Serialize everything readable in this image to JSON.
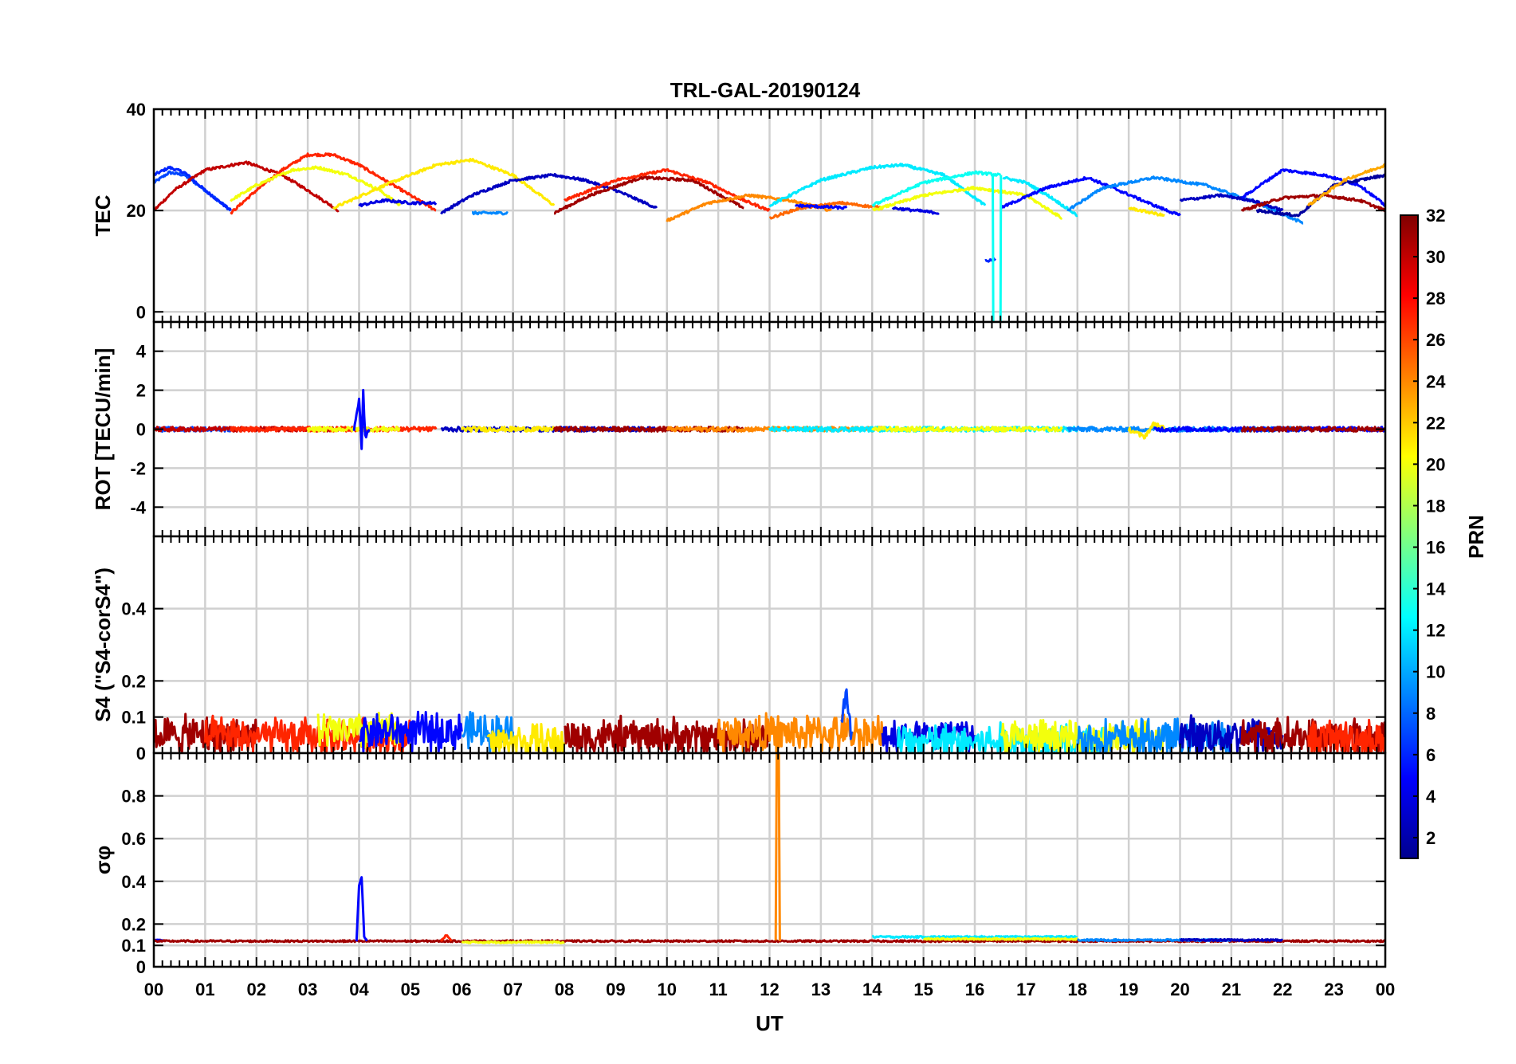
{
  "title": "TRL-GAL-20190124",
  "chart_data": {
    "type": "line",
    "title": "TRL-GAL-20190124",
    "xlabel": "UT",
    "x_tick_labels": [
      "00",
      "01",
      "02",
      "03",
      "04",
      "05",
      "06",
      "07",
      "08",
      "09",
      "10",
      "11",
      "12",
      "13",
      "14",
      "15",
      "16",
      "17",
      "18",
      "19",
      "20",
      "21",
      "22",
      "23",
      "00"
    ],
    "xlim_hours": [
      0,
      24
    ],
    "colorbar": {
      "label": "PRN",
      "range": [
        1,
        32
      ],
      "ticks": [
        "2",
        "4",
        "6",
        "8",
        "10",
        "12",
        "14",
        "16",
        "18",
        "20",
        "22",
        "24",
        "26",
        "28",
        "30",
        "32"
      ],
      "colormap": "jet"
    },
    "panels": [
      {
        "id": "tec",
        "ylabel": "TEC",
        "ylim": [
          -2,
          40
        ],
        "yticks": [
          "0",
          "20",
          "40"
        ],
        "ytick_values": [
          0,
          20,
          40
        ],
        "noise": 0.25,
        "series": [
          {
            "prn": 7,
            "x": [
              0.0,
              0.3,
              0.6,
              1.0,
              1.5
            ],
            "y": [
              25.5,
              27.5,
              27,
              24,
              20
            ]
          },
          {
            "prn": 6,
            "x": [
              0.0,
              0.3,
              0.6,
              1.0,
              1.5
            ],
            "y": [
              27,
              28.5,
              27.5,
              24,
              20
            ]
          },
          {
            "prn": 30,
            "x": [
              0.0,
              0.4,
              1.0,
              1.8,
              2.5,
              3.0,
              3.6
            ],
            "y": [
              20,
              24,
              28,
              29.5,
              27,
              24,
              20
            ]
          },
          {
            "prn": 27,
            "x": [
              1.5,
              2.0,
              2.5,
              3.0,
              3.5,
              4.0,
              4.5,
              5.0,
              5.5
            ],
            "y": [
              19.5,
              24,
              28,
              31,
              31,
              29,
              26,
              23,
              20
            ]
          },
          {
            "prn": 20,
            "x": [
              1.5,
              2.0,
              2.7,
              3.2,
              3.8,
              4.4,
              4.8
            ],
            "y": [
              22,
              25,
              28,
              28.5,
              27,
              24,
              21
            ]
          },
          {
            "prn": 21,
            "x": [
              3.5,
              4.5,
              5.5,
              6.2,
              7.0,
              7.8
            ],
            "y": [
              20.5,
              25,
              29,
              30,
              27,
              21
            ]
          },
          {
            "prn": 4,
            "x": [
              4.0,
              4.5,
              5.0,
              5.5
            ],
            "y": [
              21,
              22,
              21.5,
              21.5
            ]
          },
          {
            "prn": 3,
            "x": [
              5.6,
              6.2,
              7.0,
              7.8,
              8.4,
              9.0,
              9.8
            ],
            "y": [
              19.5,
              23,
              26,
              27,
              26,
              24,
              20.5
            ]
          },
          {
            "prn": 9,
            "x": [
              6.2,
              6.9
            ],
            "y": [
              19.5,
              19.5
            ]
          },
          {
            "prn": 31,
            "x": [
              7.8,
              8.5,
              9.5,
              10.5,
              11.5
            ],
            "y": [
              19.5,
              23,
              26.5,
              26,
              20.5
            ]
          },
          {
            "prn": 27,
            "x": [
              8.0,
              9.0,
              10.0,
              10.8,
              11.5,
              12.0
            ],
            "y": [
              22,
              26,
              28,
              25.5,
              22,
              20
            ]
          },
          {
            "prn": 24,
            "x": [
              10.0,
              10.8,
              11.6,
              12.4,
              13.2
            ],
            "y": [
              18,
              21.5,
              23,
              22,
              20
            ]
          },
          {
            "prn": 25,
            "x": [
              12.0,
              12.6,
              13.4,
              14.2
            ],
            "y": [
              18.5,
              20.5,
              21.5,
              20.5
            ]
          },
          {
            "prn": 12,
            "x": [
              12.0,
              13.0,
              14.0,
              14.6,
              15.4,
              16.2
            ],
            "y": [
              21,
              26,
              28.5,
              29,
              27,
              21
            ]
          },
          {
            "prn": 5,
            "x": [
              12.5,
              13.5
            ],
            "y": [
              21,
              20.5
            ]
          },
          {
            "prn": 13,
            "x": [
              14.0,
              15.0,
              16.0,
              16.5
            ],
            "y": [
              21,
              25.5,
              27.5,
              27
            ]
          },
          {
            "prn": 20,
            "x": [
              14.0,
              15.0,
              16.0,
              17.0,
              17.7
            ],
            "y": [
              20,
              23,
              24.5,
              23,
              18.5
            ]
          },
          {
            "prn": 4,
            "x": [
              14.4,
              15.3
            ],
            "y": [
              20.5,
              19.5
            ]
          },
          {
            "prn": 12,
            "x": [
              16.55,
              17.0,
              17.5,
              18.0
            ],
            "y": [
              26.5,
              25.5,
              22.5,
              19
            ]
          },
          {
            "prn": 5,
            "x": [
              16.5,
              17.4,
              18.2,
              18.8,
              19.5,
              20.0
            ],
            "y": [
              20.5,
              24.5,
              26.5,
              24,
              21,
              19
            ]
          },
          {
            "prn": 9,
            "x": [
              17.8,
              18.5,
              19.5,
              20.5,
              21.5,
              22.4
            ],
            "y": [
              20,
              24.5,
              26.5,
              25,
              21.5,
              17.5
            ]
          },
          {
            "prn": 21,
            "x": [
              19.0,
              19.7
            ],
            "y": [
              20.5,
              19
            ]
          },
          {
            "prn": 3,
            "x": [
              20.0,
              20.8,
              21.4,
              22.0
            ],
            "y": [
              22,
              23,
              22,
              20
            ]
          },
          {
            "prn": 5,
            "x": [
              21.2,
              22.0,
              22.8,
              23.5,
              24.0
            ],
            "y": [
              22.5,
              28,
              27,
              25,
              21
            ]
          },
          {
            "prn": 31,
            "x": [
              21.2,
              22.0,
              22.8,
              23.5,
              24.0
            ],
            "y": [
              20,
              22.5,
              23,
              22,
              20
            ]
          },
          {
            "prn": 2,
            "x": [
              21.5,
              22.3,
              23.0,
              24.0
            ],
            "y": [
              20,
              19,
              25,
              27
            ]
          },
          {
            "prn": 23,
            "x": [
              22.5,
              23.2,
              24.0
            ],
            "y": [
              21,
              26,
              29
            ]
          },
          {
            "prn": 6,
            "x": [
              16.2,
              16.4
            ],
            "y": [
              10,
              10.5
            ]
          },
          {
            "prn": 13,
            "x": [
              16.35,
              16.36,
              16.5,
              16.51
            ],
            "y": [
              27,
              -5,
              -5,
              27
            ]
          }
        ]
      },
      {
        "id": "rot",
        "ylabel": "ROT [TECU/min]",
        "ylim": [
          -5.5,
          5.5
        ],
        "yticks": [
          "-4",
          "-2",
          "0",
          "2",
          "4"
        ],
        "ytick_values": [
          -4,
          -2,
          0,
          2,
          4
        ],
        "noise": 0.12,
        "series": [
          {
            "prn": 7,
            "x": [
              0,
              1.5
            ],
            "y": [
              0,
              0
            ]
          },
          {
            "prn": 30,
            "x": [
              0,
              3.6
            ],
            "y": [
              0,
              0
            ]
          },
          {
            "prn": 27,
            "x": [
              1.5,
              5.5
            ],
            "y": [
              0,
              0
            ]
          },
          {
            "prn": 20,
            "x": [
              3.0,
              4.8
            ],
            "y": [
              0,
              0
            ]
          },
          {
            "prn": 5,
            "x": [
              3.9,
              4.0,
              4.05,
              4.08,
              4.12,
              4.2
            ],
            "y": [
              0,
              1.5,
              -0.9,
              1.9,
              -0.4,
              0
            ]
          },
          {
            "prn": 3,
            "x": [
              5.6,
              9.8
            ],
            "y": [
              0,
              0
            ]
          },
          {
            "prn": 21,
            "x": [
              6.0,
              7.8
            ],
            "y": [
              0,
              0
            ]
          },
          {
            "prn": 31,
            "x": [
              7.8,
              11.5
            ],
            "y": [
              0,
              0
            ]
          },
          {
            "prn": 24,
            "x": [
              10.0,
              14.2
            ],
            "y": [
              0,
              0
            ]
          },
          {
            "prn": 12,
            "x": [
              12.0,
              18.0
            ],
            "y": [
              0,
              0
            ]
          },
          {
            "prn": 20,
            "x": [
              14.0,
              17.7
            ],
            "y": [
              0,
              0
            ]
          },
          {
            "prn": 9,
            "x": [
              17.8,
              22.4
            ],
            "y": [
              0,
              0
            ]
          },
          {
            "prn": 21,
            "x": [
              19.0,
              19.3,
              19.5,
              19.7
            ],
            "y": [
              0,
              -0.4,
              0.3,
              0
            ]
          },
          {
            "prn": 5,
            "x": [
              19.5,
              24.0
            ],
            "y": [
              0,
              0
            ]
          },
          {
            "prn": 31,
            "x": [
              21.2,
              24.0
            ],
            "y": [
              0,
              0
            ]
          }
        ]
      },
      {
        "id": "s4",
        "ylabel": "S4 (\"S4-corS4\")",
        "ylim": [
          0,
          0.6
        ],
        "yticks": [
          "0",
          "0.1",
          "0.2",
          "0.4"
        ],
        "ytick_values": [
          0,
          0.1,
          0.2,
          0.4
        ],
        "noise": 0.025,
        "series": [
          {
            "prn": 31,
            "x": [
              0,
              2.0
            ],
            "y": [
              0.05,
              0.05
            ]
          },
          {
            "prn": 27,
            "x": [
              1.0,
              5.0
            ],
            "y": [
              0.045,
              0.045
            ]
          },
          {
            "prn": 20,
            "x": [
              3.2,
              4.8
            ],
            "y": [
              0.06,
              0.06
            ]
          },
          {
            "prn": 5,
            "x": [
              4.0,
              6.0
            ],
            "y": [
              0.06,
              0.06
            ]
          },
          {
            "prn": 9,
            "x": [
              6.0,
              7.0
            ],
            "y": [
              0.06,
              0.06
            ]
          },
          {
            "prn": 21,
            "x": [
              6.5,
              8.0
            ],
            "y": [
              0.03,
              0.03
            ]
          },
          {
            "prn": 31,
            "x": [
              8.0,
              12.0
            ],
            "y": [
              0.045,
              0.045
            ]
          },
          {
            "prn": 24,
            "x": [
              11.0,
              14.2
            ],
            "y": [
              0.055,
              0.055
            ]
          },
          {
            "prn": 7,
            "x": [
              13.4,
              13.5,
              13.55,
              13.6
            ],
            "y": [
              0.06,
              0.18,
              0.06,
              0.06
            ]
          },
          {
            "prn": 4,
            "x": [
              14.2,
              16.0
            ],
            "y": [
              0.05,
              0.05
            ]
          },
          {
            "prn": 12,
            "x": [
              14.5,
              18.5
            ],
            "y": [
              0.03,
              0.03
            ]
          },
          {
            "prn": 20,
            "x": [
              16.5,
              19.8
            ],
            "y": [
              0.04,
              0.04
            ]
          },
          {
            "prn": 9,
            "x": [
              18.0,
              21.0
            ],
            "y": [
              0.04,
              0.04
            ]
          },
          {
            "prn": 3,
            "x": [
              20.0,
              22.0
            ],
            "y": [
              0.05,
              0.05
            ]
          },
          {
            "prn": 31,
            "x": [
              21.2,
              24.0
            ],
            "y": [
              0.045,
              0.045
            ]
          },
          {
            "prn": 27,
            "x": [
              22.5,
              24.0
            ],
            "y": [
              0.04,
              0.04
            ]
          }
        ]
      },
      {
        "id": "sigma",
        "ylabel": "σφ",
        "ylim": [
          0,
          1
        ],
        "yticks": [
          "0",
          "0.1",
          "0.2",
          "0.4",
          "0.6",
          "0.8"
        ],
        "ytick_values": [
          0,
          0.1,
          0.2,
          0.4,
          0.6,
          0.8
        ],
        "noise": 0.004,
        "series": [
          {
            "prn": 5,
            "x": [
              0,
              0.2
            ],
            "y": [
              0.13,
              0.12
            ]
          },
          {
            "prn": 31,
            "x": [
              0,
              24.0
            ],
            "y": [
              0.12,
              0.12
            ]
          },
          {
            "prn": 5,
            "x": [
              3.95,
              4.0,
              4.05,
              4.1,
              4.15
            ],
            "y": [
              0.12,
              0.38,
              0.42,
              0.14,
              0.12
            ]
          },
          {
            "prn": 27,
            "x": [
              5.6,
              5.7,
              5.8
            ],
            "y": [
              0.12,
              0.15,
              0.12
            ]
          },
          {
            "prn": 20,
            "x": [
              6.0,
              8.0
            ],
            "y": [
              0.115,
              0.115
            ]
          },
          {
            "prn": 24,
            "x": [
              12.12,
              12.14,
              12.18,
              12.2
            ],
            "y": [
              0.12,
              1.0,
              1.0,
              0.12
            ]
          },
          {
            "prn": 12,
            "x": [
              14.0,
              18.0
            ],
            "y": [
              0.14,
              0.14
            ]
          },
          {
            "prn": 20,
            "x": [
              15.0,
              18.0
            ],
            "y": [
              0.13,
              0.13
            ]
          },
          {
            "prn": 9,
            "x": [
              18.0,
              21.0
            ],
            "y": [
              0.125,
              0.125
            ]
          },
          {
            "prn": 3,
            "x": [
              20.0,
              22.0
            ],
            "y": [
              0.125,
              0.125
            ]
          }
        ]
      }
    ]
  }
}
